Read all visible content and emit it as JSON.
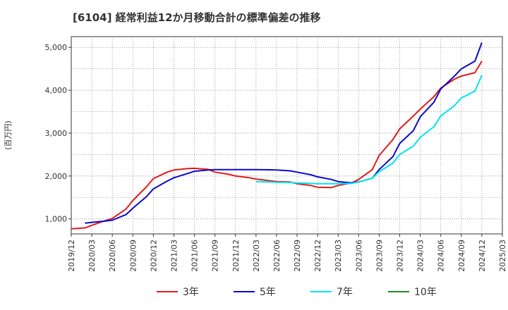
{
  "chart_data": {
    "type": "line",
    "title": "[6104]  経常利益12か月移動合計の標準偏差の推移",
    "ylabel": "(百万円)",
    "xlabel": "",
    "ylim": [
      650,
      5250
    ],
    "yticks": [
      1000,
      2000,
      3000,
      4000,
      5000
    ],
    "ytick_labels": [
      "1,000",
      "2,000",
      "3,000",
      "4,000",
      "5,000"
    ],
    "x_range": [
      "2019-12",
      "2025-03"
    ],
    "xtick_labels": [
      "2019/12",
      "2020/03",
      "2020/06",
      "2020/09",
      "2020/12",
      "2021/03",
      "2021/06",
      "2021/09",
      "2021/12",
      "2022/03",
      "2022/06",
      "2022/09",
      "2022/12",
      "2023/03",
      "2023/06",
      "2023/09",
      "2023/12",
      "2024/03",
      "2024/06",
      "2024/09",
      "2024/12",
      "2025/03"
    ],
    "grid": true,
    "legend_position": "bottom",
    "series": [
      {
        "name": "3年",
        "color": "#e31a1c",
        "x": [
          "2019-12",
          "2020-02",
          "2020-03",
          "2020-05",
          "2020-06",
          "2020-08",
          "2020-09",
          "2020-11",
          "2020-12",
          "2021-02",
          "2021-03",
          "2021-05",
          "2021-06",
          "2021-08",
          "2021-09",
          "2021-11",
          "2021-12",
          "2022-02",
          "2022-03",
          "2022-05",
          "2022-06",
          "2022-08",
          "2022-09",
          "2022-11",
          "2022-12",
          "2023-02",
          "2023-03",
          "2023-05",
          "2023-06",
          "2023-08",
          "2023-09",
          "2023-11",
          "2023-12",
          "2024-02",
          "2024-03",
          "2024-05",
          "2024-06",
          "2024-08",
          "2024-09",
          "2024-11",
          "2024-12"
        ],
        "y": [
          770,
          790,
          850,
          960,
          1010,
          1230,
          1430,
          1750,
          1940,
          2090,
          2140,
          2175,
          2180,
          2155,
          2090,
          2040,
          2000,
          1960,
          1930,
          1890,
          1870,
          1860,
          1820,
          1780,
          1740,
          1730,
          1780,
          1840,
          1920,
          2150,
          2480,
          2850,
          3100,
          3400,
          3560,
          3850,
          4050,
          4260,
          4330,
          4410,
          4680
        ]
      },
      {
        "name": "5年",
        "color": "#0a0acd",
        "x": [
          "2020-02",
          "2020-03",
          "2020-05",
          "2020-06",
          "2020-08",
          "2020-09",
          "2020-11",
          "2020-12",
          "2021-02",
          "2021-03",
          "2021-05",
          "2021-06",
          "2021-08",
          "2021-09",
          "2021-11",
          "2021-12",
          "2022-02",
          "2022-03",
          "2022-05",
          "2022-06",
          "2022-08",
          "2022-09",
          "2022-11",
          "2022-12",
          "2023-02",
          "2023-03",
          "2023-05",
          "2023-06",
          "2023-08",
          "2023-09",
          "2023-11",
          "2023-12",
          "2024-02",
          "2024-03",
          "2024-05",
          "2024-06",
          "2024-08",
          "2024-09",
          "2024-11",
          "2024-12"
        ],
        "y": [
          900,
          920,
          950,
          970,
          1100,
          1250,
          1520,
          1700,
          1880,
          1960,
          2060,
          2110,
          2140,
          2150,
          2150,
          2150,
          2150,
          2150,
          2145,
          2140,
          2120,
          2090,
          2030,
          1980,
          1920,
          1870,
          1840,
          1860,
          1950,
          2150,
          2450,
          2760,
          3060,
          3380,
          3720,
          4030,
          4330,
          4500,
          4680,
          5110
        ]
      },
      {
        "name": "7年",
        "color": "#00e5ee",
        "x": [
          "2022-03",
          "2022-05",
          "2022-06",
          "2022-08",
          "2022-09",
          "2022-11",
          "2022-12",
          "2023-02",
          "2023-03",
          "2023-05",
          "2023-06",
          "2023-08",
          "2023-09",
          "2023-11",
          "2023-12",
          "2024-02",
          "2024-03",
          "2024-05",
          "2024-06",
          "2024-08",
          "2024-09",
          "2024-11",
          "2024-12"
        ],
        "y": [
          1870,
          1860,
          1855,
          1850,
          1840,
          1830,
          1820,
          1820,
          1820,
          1830,
          1860,
          1950,
          2100,
          2300,
          2500,
          2700,
          2900,
          3150,
          3400,
          3640,
          3820,
          3980,
          4350
        ]
      },
      {
        "name": "10年",
        "color": "#228b22",
        "x": [],
        "y": []
      }
    ]
  }
}
